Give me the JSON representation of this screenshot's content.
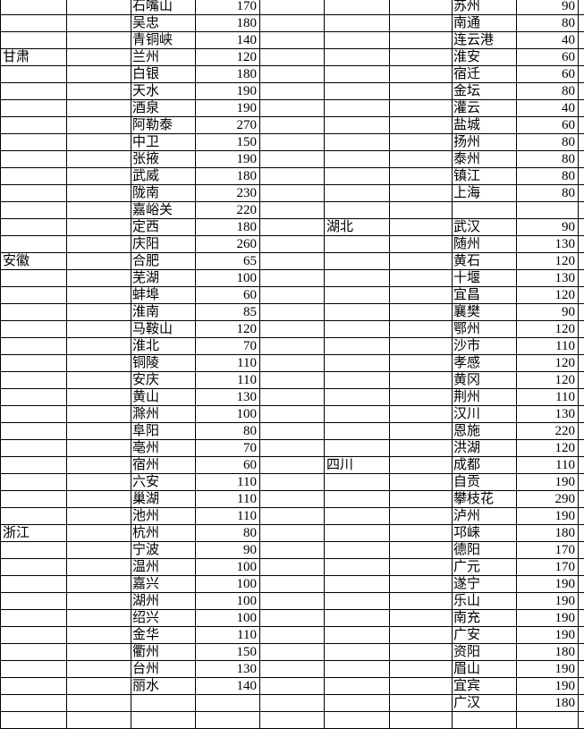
{
  "spreadsheet": {
    "background_color": "#ffffff",
    "gridline_color": "#000000",
    "text_color": "#000000",
    "left_group_provinces": [
      "甘肃",
      "安徽",
      "浙江"
    ],
    "right_group_provinces": [
      "湖北",
      "四川"
    ],
    "rows": [
      {
        "lp": "",
        "lc": "石嘴山",
        "lv": "170",
        "rp": "",
        "rc": "苏州",
        "rv": "90"
      },
      {
        "lp": "",
        "lc": "吴忠",
        "lv": "180",
        "rp": "",
        "rc": "南通",
        "rv": "80"
      },
      {
        "lp": "",
        "lc": "青铜峡",
        "lv": "140",
        "rp": "",
        "rc": "连云港",
        "rv": "40"
      },
      {
        "lp": "甘肃",
        "lc": "兰州",
        "lv": "120",
        "rp": "",
        "rc": "淮安",
        "rv": "60"
      },
      {
        "lp": "",
        "lc": "白银",
        "lv": "180",
        "rp": "",
        "rc": "宿迁",
        "rv": "60"
      },
      {
        "lp": "",
        "lc": "天水",
        "lv": "190",
        "rp": "",
        "rc": "金坛",
        "rv": "80"
      },
      {
        "lp": "",
        "lc": "酒泉",
        "lv": "190",
        "rp": "",
        "rc": "灌云",
        "rv": "40"
      },
      {
        "lp": "",
        "lc": "阿勒泰",
        "lv": "270",
        "rp": "",
        "rc": "盐城",
        "rv": "60"
      },
      {
        "lp": "",
        "lc": "中卫",
        "lv": "150",
        "rp": "",
        "rc": "扬州",
        "rv": "80"
      },
      {
        "lp": "",
        "lc": "张掖",
        "lv": "190",
        "rp": "",
        "rc": "泰州",
        "rv": "80"
      },
      {
        "lp": "",
        "lc": "武威",
        "lv": "180",
        "rp": "",
        "rc": "镇江",
        "rv": "80"
      },
      {
        "lp": "",
        "lc": "陇南",
        "lv": "230",
        "rp": "",
        "rc": "上海",
        "rv": "80"
      },
      {
        "lp": "",
        "lc": "嘉峪关",
        "lv": "220",
        "rp": "",
        "rc": "",
        "rv": ""
      },
      {
        "lp": "",
        "lc": "定西",
        "lv": "180",
        "rp": "湖北",
        "rc": "武汉",
        "rv": "90"
      },
      {
        "lp": "",
        "lc": "庆阳",
        "lv": "260",
        "rp": "",
        "rc": "随州",
        "rv": "130"
      },
      {
        "lp": "安徽",
        "lc": "合肥",
        "lv": "65",
        "rp": "",
        "rc": "黄石",
        "rv": "120"
      },
      {
        "lp": "",
        "lc": "芜湖",
        "lv": "100",
        "rp": "",
        "rc": "十堰",
        "rv": "130"
      },
      {
        "lp": "",
        "lc": "蚌埠",
        "lv": "60",
        "rp": "",
        "rc": "宜昌",
        "rv": "120"
      },
      {
        "lp": "",
        "lc": "淮南",
        "lv": "85",
        "rp": "",
        "rc": "襄樊",
        "rv": "90"
      },
      {
        "lp": "",
        "lc": "马鞍山",
        "lv": "120",
        "rp": "",
        "rc": "鄂州",
        "rv": "120"
      },
      {
        "lp": "",
        "lc": "淮北",
        "lv": "70",
        "rp": "",
        "rc": "沙市",
        "rv": "110"
      },
      {
        "lp": "",
        "lc": "铜陵",
        "lv": "110",
        "rp": "",
        "rc": "孝感",
        "rv": "120"
      },
      {
        "lp": "",
        "lc": "安庆",
        "lv": "110",
        "rp": "",
        "rc": "黄冈",
        "rv": "120"
      },
      {
        "lp": "",
        "lc": "黄山",
        "lv": "130",
        "rp": "",
        "rc": "荆州",
        "rv": "110"
      },
      {
        "lp": "",
        "lc": "滁州",
        "lv": "100",
        "rp": "",
        "rc": "汉川",
        "rv": "130"
      },
      {
        "lp": "",
        "lc": "阜阳",
        "lv": "80",
        "rp": "",
        "rc": "恩施",
        "rv": "220"
      },
      {
        "lp": "",
        "lc": "亳州",
        "lv": "70",
        "rp": "",
        "rc": "洪湖",
        "rv": "120"
      },
      {
        "lp": "",
        "lc": "宿州",
        "lv": "60",
        "rp": "四川",
        "rc": "成都",
        "rv": "110"
      },
      {
        "lp": "",
        "lc": "六安",
        "lv": "110",
        "rp": "",
        "rc": "自贡",
        "rv": "190"
      },
      {
        "lp": "",
        "lc": "巢湖",
        "lv": "110",
        "rp": "",
        "rc": "攀枝花",
        "rv": "290"
      },
      {
        "lp": "",
        "lc": "池州",
        "lv": "110",
        "rp": "",
        "rc": "泸州",
        "rv": "190"
      },
      {
        "lp": "浙江",
        "lc": "杭州",
        "lv": "80",
        "rp": "",
        "rc": "邛崃",
        "rv": "180"
      },
      {
        "lp": "",
        "lc": "宁波",
        "lv": "90",
        "rp": "",
        "rc": "德阳",
        "rv": "170"
      },
      {
        "lp": "",
        "lc": "温州",
        "lv": "100",
        "rp": "",
        "rc": "广元",
        "rv": "170"
      },
      {
        "lp": "",
        "lc": "嘉兴",
        "lv": "100",
        "rp": "",
        "rc": "遂宁",
        "rv": "190"
      },
      {
        "lp": "",
        "lc": "湖州",
        "lv": "100",
        "rp": "",
        "rc": "乐山",
        "rv": "190"
      },
      {
        "lp": "",
        "lc": "绍兴",
        "lv": "100",
        "rp": "",
        "rc": "南充",
        "rv": "190"
      },
      {
        "lp": "",
        "lc": "金华",
        "lv": "110",
        "rp": "",
        "rc": "广安",
        "rv": "190"
      },
      {
        "lp": "",
        "lc": "衢州",
        "lv": "150",
        "rp": "",
        "rc": "资阳",
        "rv": "180"
      },
      {
        "lp": "",
        "lc": "台州",
        "lv": "130",
        "rp": "",
        "rc": "眉山",
        "rv": "190"
      },
      {
        "lp": "",
        "lc": "丽水",
        "lv": "140",
        "rp": "",
        "rc": "宜宾",
        "rv": "190"
      },
      {
        "lp": "",
        "lc": "",
        "lv": "",
        "rp": "",
        "rc": "广汉",
        "rv": "180"
      },
      {
        "lp": "",
        "lc": "",
        "lv": "",
        "rp": "",
        "rc": "",
        "rv": ""
      }
    ]
  }
}
